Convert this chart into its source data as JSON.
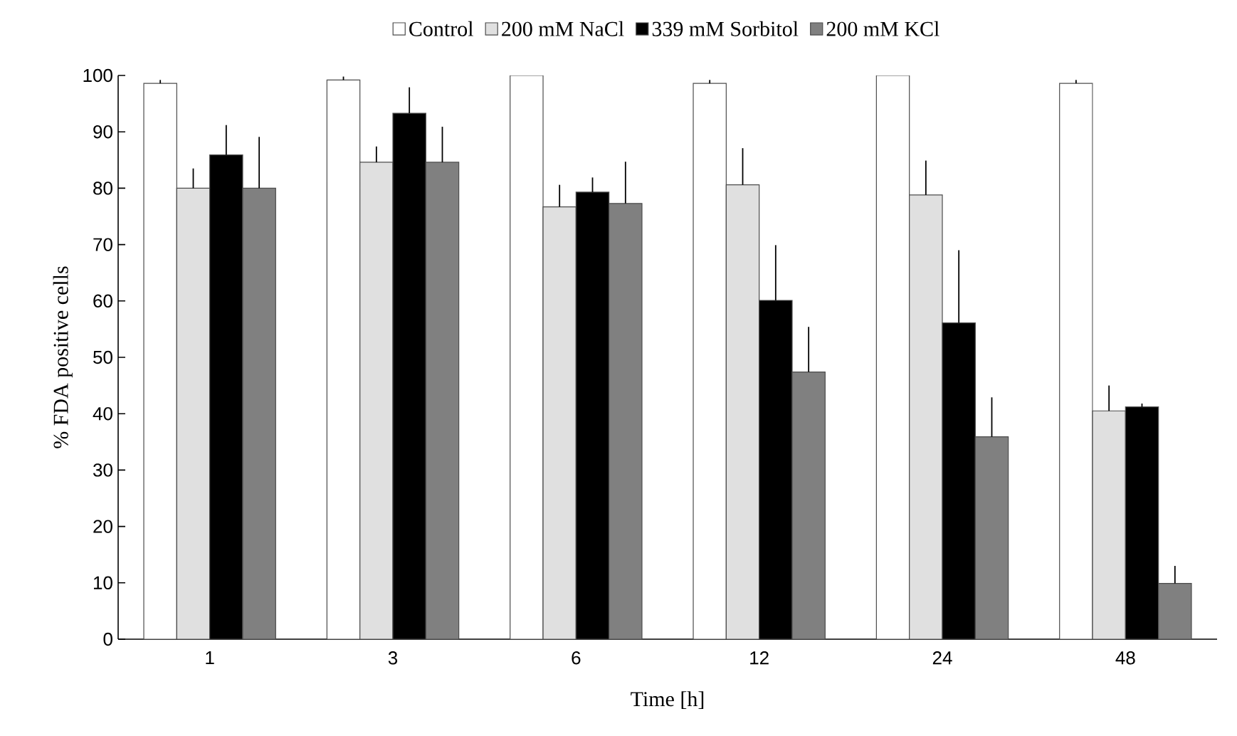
{
  "chart_data": {
    "type": "bar",
    "xlabel": "Time [h]",
    "ylabel": "% FDA positive cells",
    "categories": [
      "1",
      "3",
      "6",
      "12",
      "24",
      "48"
    ],
    "series": [
      {
        "name": "Control",
        "color": "#ffffff",
        "values": [
          98.6,
          99.2,
          100,
          98.6,
          100,
          98.6
        ],
        "errors": [
          [
            98.6,
            99.2
          ],
          [
            99.2,
            99.8
          ],
          null,
          [
            98.6,
            99.2
          ],
          null,
          [
            98.6,
            99.2
          ]
        ]
      },
      {
        "name": "200 mM NaCl",
        "color": "#e0e0e0",
        "values": [
          80.0,
          84.6,
          76.7,
          80.6,
          78.8,
          40.5
        ],
        "errors": [
          [
            80.0,
            83.5
          ],
          [
            84.6,
            87.4
          ],
          [
            76.7,
            80.6
          ],
          [
            80.6,
            87.1
          ],
          [
            78.8,
            84.9
          ],
          [
            40.5,
            45.0
          ]
        ]
      },
      {
        "name": "339 mM Sorbitol",
        "color": "#000000",
        "values": [
          85.9,
          93.3,
          79.3,
          60.1,
          56.1,
          41.2
        ],
        "errors": [
          [
            85.9,
            91.2
          ],
          [
            93.3,
            97.9
          ],
          [
            79.3,
            81.9
          ],
          [
            60.1,
            69.9
          ],
          [
            56.1,
            69.0
          ],
          [
            41.2,
            41.8
          ]
        ]
      },
      {
        "name": "200 mM KCl",
        "color": "#808080",
        "values": [
          80.0,
          84.6,
          77.3,
          47.4,
          35.9,
          9.9
        ],
        "errors": [
          [
            80.0,
            89.1
          ],
          [
            84.6,
            90.9
          ],
          [
            77.3,
            84.7
          ],
          [
            47.4,
            55.4
          ],
          [
            35.9,
            42.9
          ],
          [
            9.9,
            13.0
          ]
        ]
      }
    ],
    "ylim": [
      0,
      100
    ],
    "yticks": [
      0,
      10,
      20,
      30,
      40,
      50,
      60,
      70,
      80,
      90,
      100
    ],
    "grid": false,
    "legend": "top"
  }
}
